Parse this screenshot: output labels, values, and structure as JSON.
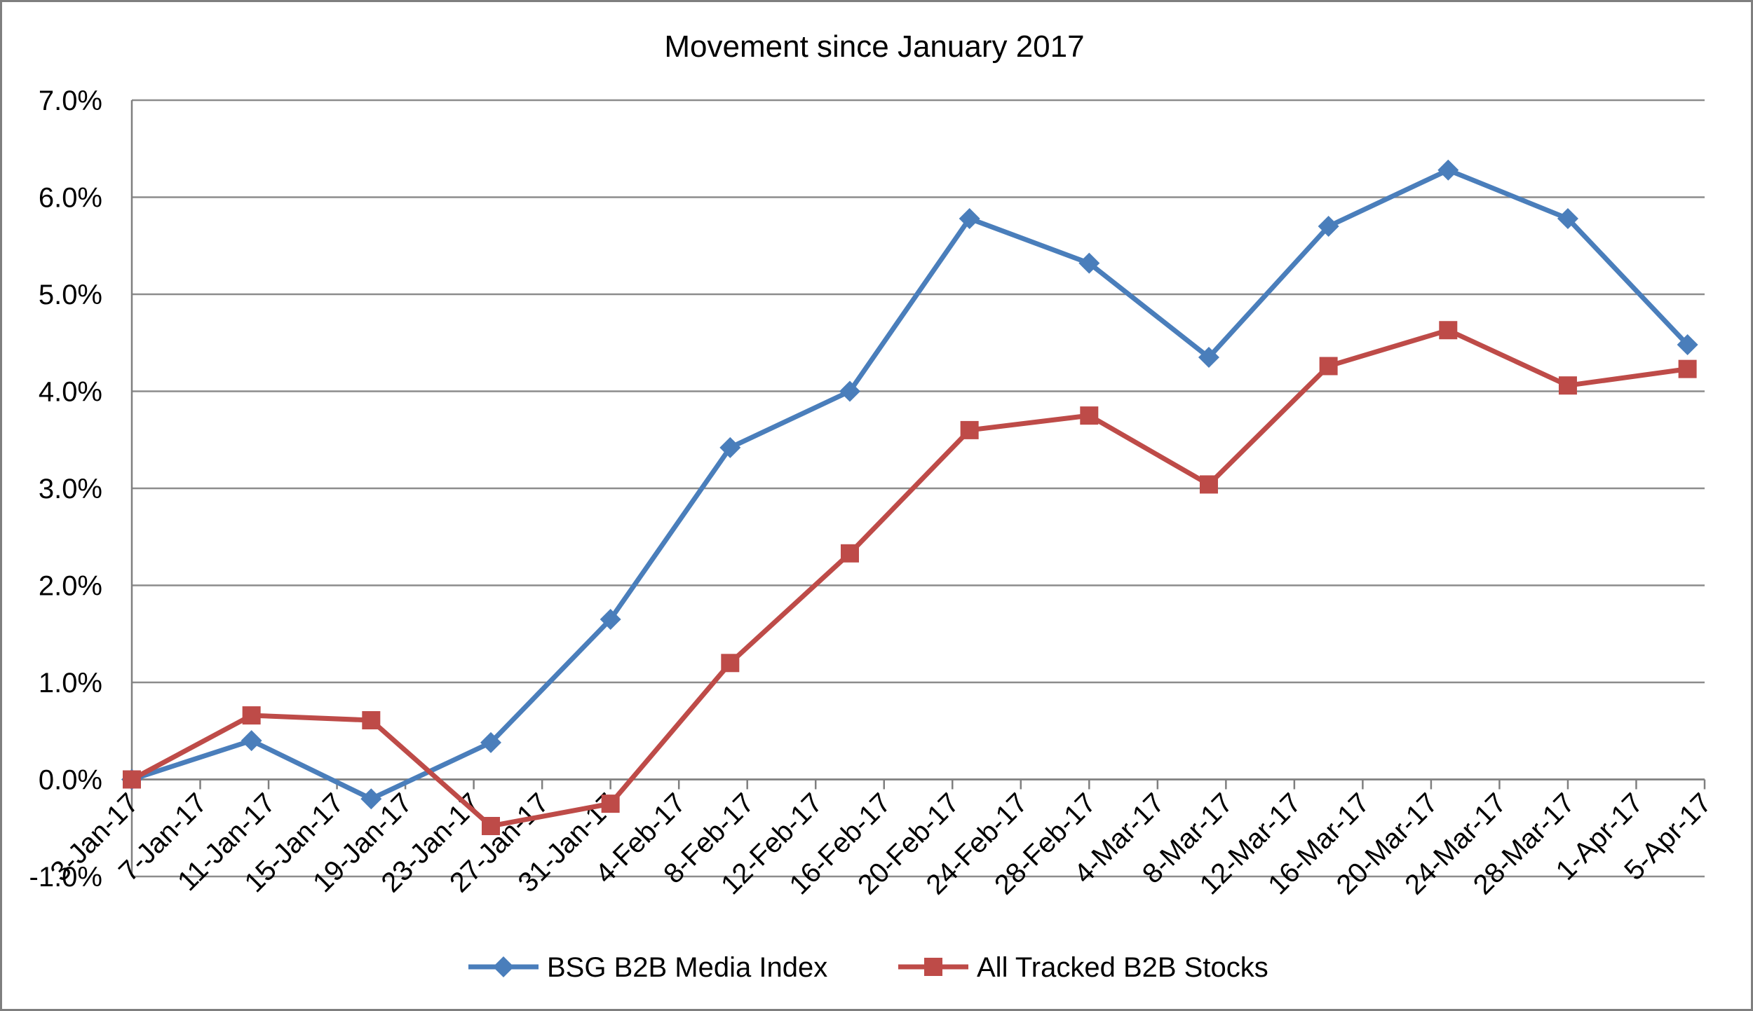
{
  "chart_data": {
    "type": "line",
    "title": "Movement since January 2017",
    "xlabel": "",
    "ylabel": "",
    "x_tick_labels": [
      "3-Jan-17",
      "7-Jan-17",
      "11-Jan-17",
      "15-Jan-17",
      "19-Jan-17",
      "23-Jan-17",
      "27-Jan-17",
      "31-Jan-17",
      "4-Feb-17",
      "8-Feb-17",
      "12-Feb-17",
      "16-Feb-17",
      "20-Feb-17",
      "24-Feb-17",
      "28-Feb-17",
      "4-Mar-17",
      "8-Mar-17",
      "12-Mar-17",
      "16-Mar-17",
      "20-Mar-17",
      "24-Mar-17",
      "28-Mar-17",
      "1-Apr-17",
      "5-Apr-17"
    ],
    "xlim": [
      "2017-01-03",
      "2017-04-05"
    ],
    "ylim": [
      -1.0,
      7.0
    ],
    "y_ticks": [
      -1.0,
      0.0,
      1.0,
      2.0,
      3.0,
      4.0,
      5.0,
      6.0,
      7.0
    ],
    "y_tick_labels": [
      "-1.0%",
      "0.0%",
      "1.0%",
      "2.0%",
      "3.0%",
      "4.0%",
      "5.0%",
      "6.0%",
      "7.0%"
    ],
    "grid": true,
    "legend_position": "bottom",
    "series": [
      {
        "name": "BSG B2B Media Index",
        "color": "#4a7ebb",
        "marker": "diamond",
        "x": [
          "2017-01-03",
          "2017-01-10",
          "2017-01-17",
          "2017-01-24",
          "2017-01-31",
          "2017-02-07",
          "2017-02-14",
          "2017-02-21",
          "2017-02-28",
          "2017-03-07",
          "2017-03-14",
          "2017-03-21",
          "2017-03-28",
          "2017-04-04"
        ],
        "values": [
          0.0,
          0.4,
          -0.2,
          0.38,
          1.65,
          3.42,
          4.0,
          5.78,
          5.32,
          4.35,
          5.7,
          6.28,
          5.78,
          4.48
        ]
      },
      {
        "name": "All Tracked B2B Stocks",
        "color": "#be4b48",
        "marker": "square",
        "x": [
          "2017-01-03",
          "2017-01-10",
          "2017-01-17",
          "2017-01-24",
          "2017-01-31",
          "2017-02-07",
          "2017-02-14",
          "2017-02-21",
          "2017-02-28",
          "2017-03-07",
          "2017-03-14",
          "2017-03-21",
          "2017-03-28",
          "2017-04-04"
        ],
        "values": [
          0.0,
          0.66,
          0.61,
          -0.48,
          -0.25,
          1.2,
          2.33,
          3.6,
          3.75,
          3.04,
          4.26,
          4.63,
          4.06,
          4.23
        ]
      }
    ]
  }
}
